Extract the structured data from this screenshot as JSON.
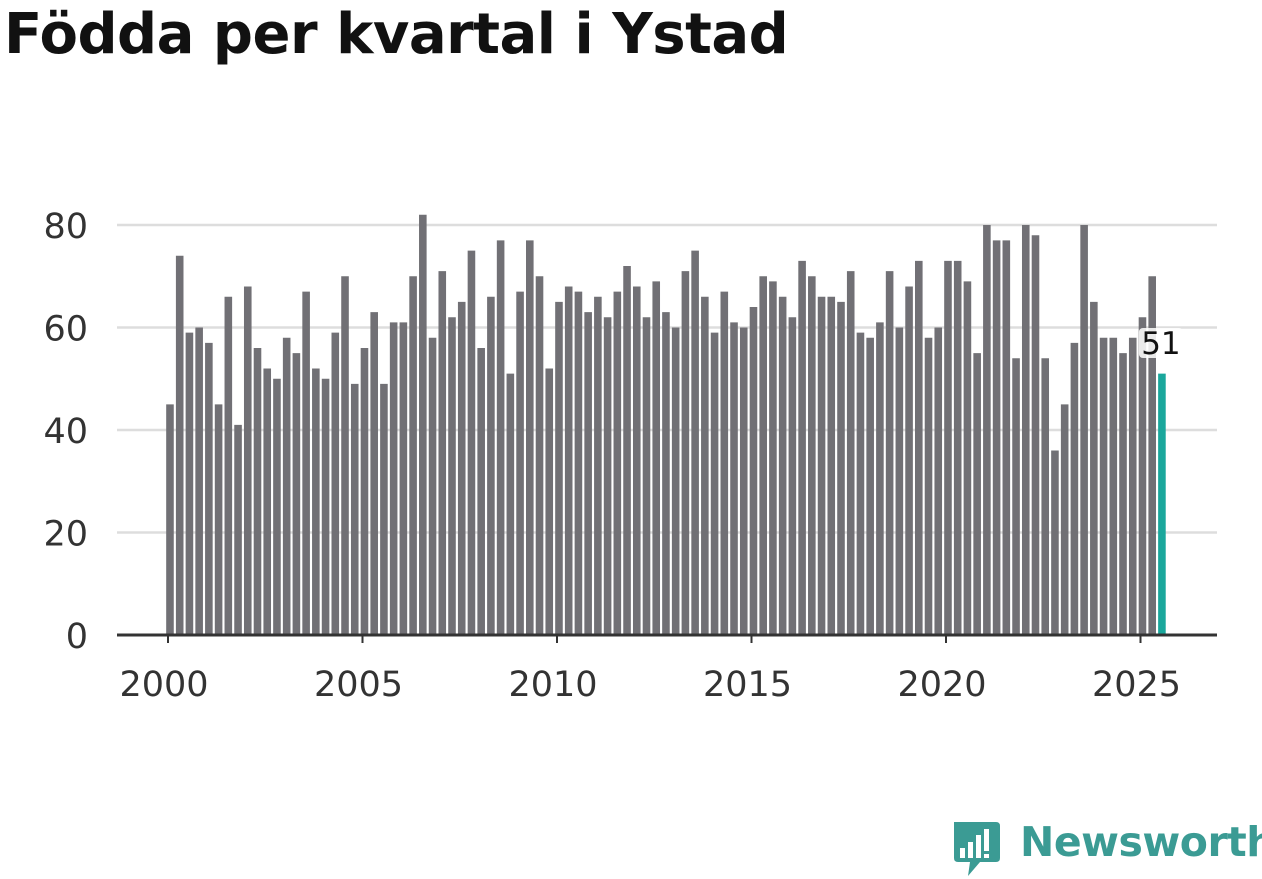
{
  "title": "Födda per kvartal i Ystad",
  "brand": {
    "name": "Newsworthy",
    "color": "#3b9b94",
    "icon": "newsworthy-chart-bubble-icon"
  },
  "colors": {
    "bar": "#717075",
    "highlight": "#1aa79c",
    "grid": "#dddddd",
    "axis": "#333333",
    "text": "#333333"
  },
  "chart_data": {
    "type": "bar",
    "title": "Födda per kvartal i Ystad",
    "xlabel": "",
    "ylabel": "",
    "ylim": [
      0,
      80
    ],
    "yticks": [
      "0",
      "20",
      "40",
      "60",
      "80"
    ],
    "xticks": [
      "2000",
      "2005",
      "2010",
      "2015",
      "2020",
      "2025"
    ],
    "x_start": "2000-Q1",
    "values": [
      45,
      74,
      59,
      60,
      57,
      45,
      66,
      41,
      68,
      56,
      52,
      50,
      58,
      55,
      67,
      52,
      50,
      59,
      70,
      49,
      56,
      63,
      49,
      61,
      61,
      70,
      82,
      58,
      71,
      62,
      65,
      75,
      56,
      66,
      77,
      51,
      67,
      77,
      70,
      52,
      65,
      68,
      67,
      63,
      66,
      62,
      67,
      72,
      68,
      62,
      69,
      63,
      60,
      71,
      75,
      66,
      59,
      67,
      61,
      60,
      64,
      70,
      69,
      66,
      62,
      73,
      70,
      66,
      66,
      65,
      71,
      59,
      58,
      61,
      71,
      60,
      68,
      73,
      58,
      60,
      73,
      73,
      69,
      55,
      80,
      77,
      77,
      54,
      80,
      78,
      54,
      36,
      45,
      57,
      80,
      65,
      58,
      58,
      55,
      58,
      62,
      70,
      51
    ],
    "highlight_label": "51",
    "grid": true,
    "legend": "none"
  }
}
